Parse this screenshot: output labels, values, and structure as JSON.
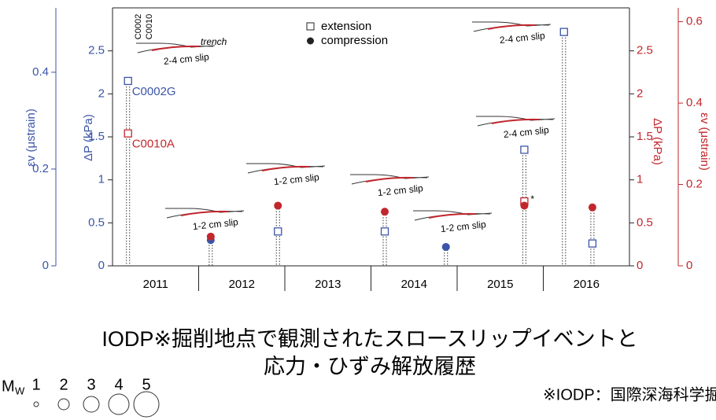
{
  "chart_data": {
    "type": "scatter",
    "xlim": [
      2011,
      2017
    ],
    "xticks": [
      2012,
      2013,
      2014,
      2015,
      2016
    ],
    "categories": [
      "2011",
      "2012",
      "2013",
      "2014",
      "2015",
      "2016"
    ],
    "ylim": [
      0,
      3
    ],
    "yticks": [
      0,
      0.5,
      1,
      1.5,
      2,
      2.5
    ],
    "ylabel": "ΔP (kPa)",
    "y2lim": [
      0,
      3
    ],
    "y2ticks": [
      0,
      0.5,
      1,
      1.5,
      2,
      2.5
    ],
    "y2label": "ΔP (kPa)",
    "strain_left": {
      "lim": [
        0,
        0.533
      ],
      "ticks": [
        0,
        0.2,
        0.4
      ],
      "label": "εv (μstrain)"
    },
    "strain_right": {
      "lim": [
        0,
        0.634
      ],
      "ticks": [
        0,
        0.2,
        0.4,
        0.6
      ],
      "label": "εv (μstrain)"
    },
    "legend": {
      "extension": "extension",
      "compression": "compression"
    },
    "series": [
      {
        "name": "C0002G",
        "color": "#3a55a8",
        "axis": "y",
        "x": [
          2011.18,
          2012.14,
          2012.92,
          2014.16,
          2014.87,
          2015.78,
          2016.24,
          2016.57
        ],
        "values": [
          2.15,
          0.3,
          0.4,
          0.4,
          0.22,
          1.35,
          2.72,
          0.26
        ],
        "filled": [
          false,
          true,
          false,
          false,
          true,
          false,
          false,
          false
        ]
      },
      {
        "name": "C0010A",
        "color": "#c1272d",
        "axis": "y2",
        "x": [
          2011.18,
          2012.14,
          2012.92,
          2014.16,
          2015.78,
          2015.78,
          2016.57
        ],
        "values": [
          1.54,
          0.34,
          0.7,
          0.63,
          0.75,
          0.7,
          0.68
        ],
        "filled": [
          false,
          true,
          true,
          true,
          false,
          true,
          true
        ]
      }
    ],
    "annotation": "*",
    "insets": [
      "2-4 cm slip",
      "1-2 cm slip",
      "1-2 cm slip",
      "1-2 cm slip",
      "1-2 cm slip",
      "2-4 cm slip",
      "2-4 cm slip"
    ],
    "inset_labels": {
      "trench": "trench",
      "site1": "C0002",
      "site2": "C0010"
    },
    "magnitude": {
      "symbol": "M",
      "subscript": "W",
      "values": [
        1,
        2,
        3,
        4,
        5
      ]
    }
  },
  "caption": {
    "line1": "IODP※掘削地点で観測されたスロースリップイベントと",
    "line2": "応力・ひずみ解放履歴",
    "note": "※IODP：国際深海科学掘削計画"
  }
}
